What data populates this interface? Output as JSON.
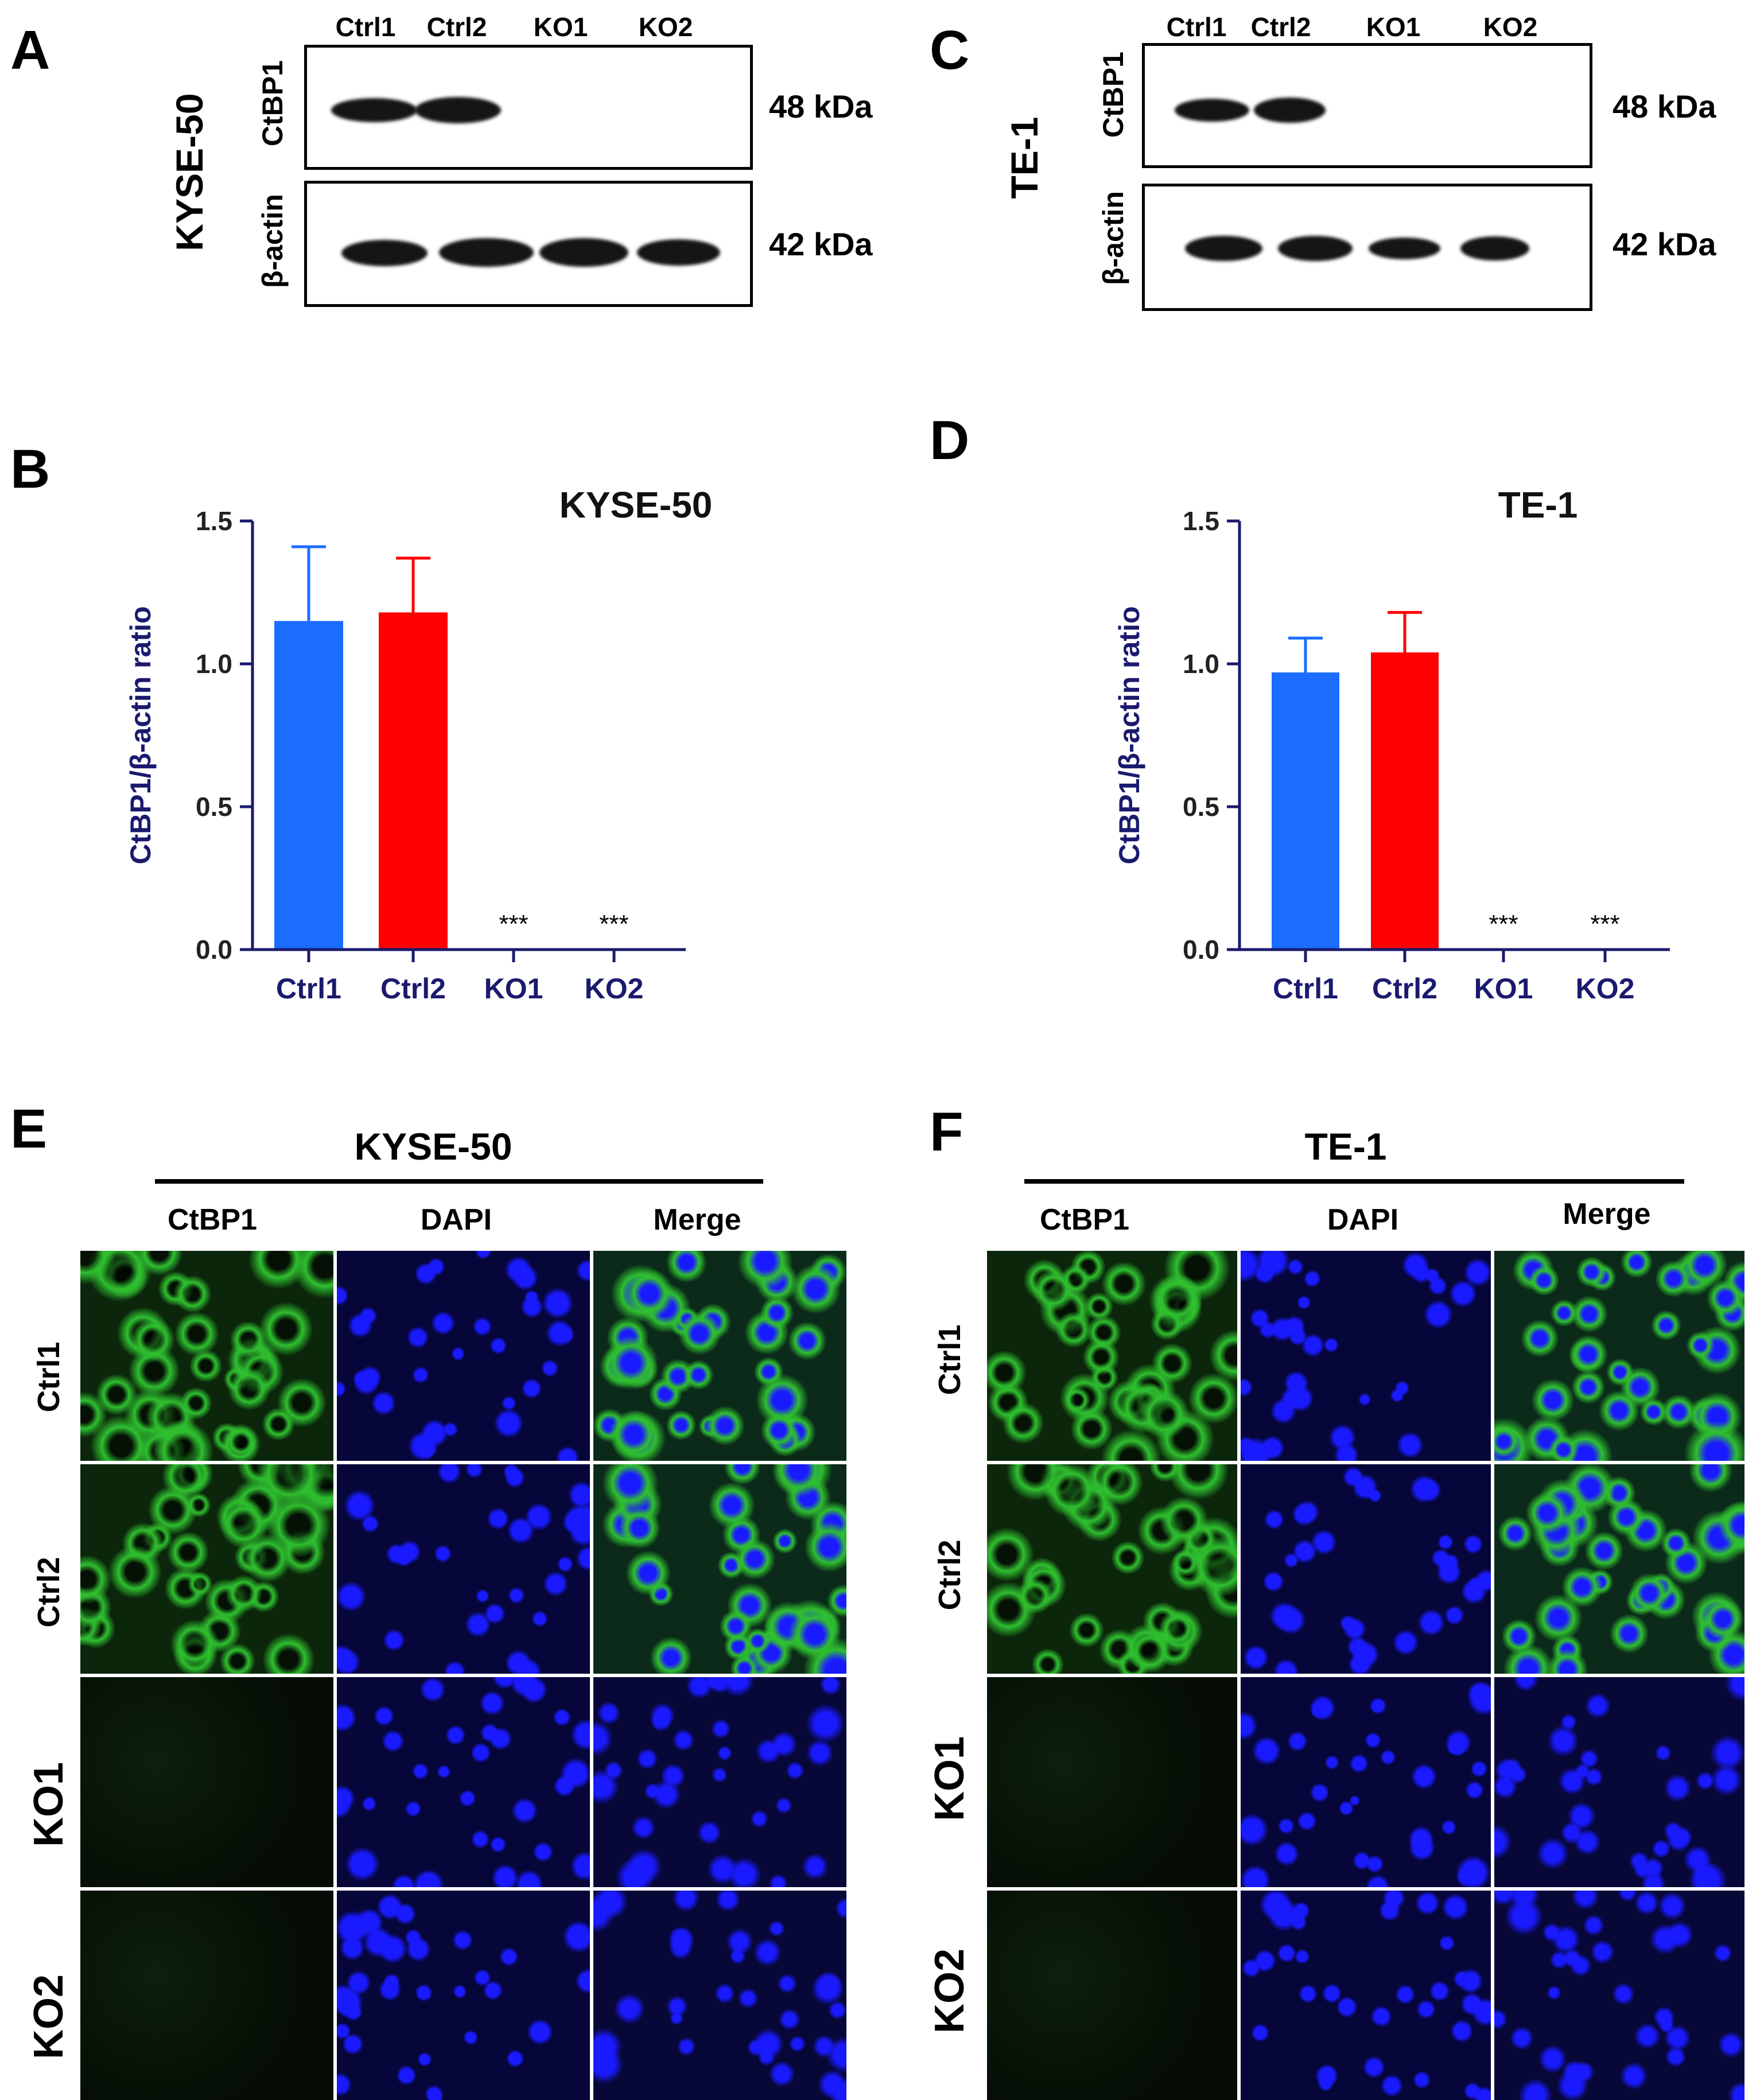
{
  "panel_letters": {
    "a": "A",
    "b": "B",
    "c": "C",
    "d": "D",
    "e": "E",
    "f": "F"
  },
  "western_blots": {
    "kyse": {
      "cell_line": "KYSE-50",
      "lanes": [
        "Ctrl1",
        "Ctrl2",
        "KO1",
        "KO2"
      ],
      "rows": [
        {
          "protein": "CtBP1",
          "kda": "48 kDa",
          "band_intensity": [
            1.0,
            1.0,
            0.0,
            0.0
          ]
        },
        {
          "protein": "β-actin",
          "kda": "42 kDa",
          "band_intensity": [
            1.0,
            1.0,
            1.0,
            1.0
          ]
        }
      ]
    },
    "te1": {
      "cell_line": "TE-1",
      "lanes": [
        "Ctrl1",
        "Ctrl2",
        "KO1",
        "KO2"
      ],
      "rows": [
        {
          "protein": "CtBP1",
          "kda": "48 kDa",
          "band_intensity": [
            1.0,
            1.0,
            0.0,
            0.0
          ]
        },
        {
          "protein": "β-actin",
          "kda": "42 kDa",
          "band_intensity": [
            1.0,
            1.0,
            1.0,
            1.0
          ]
        }
      ]
    }
  },
  "chart_data": [
    {
      "type": "bar",
      "title": "KYSE-50",
      "ylabel": "CtBP1/β-actin ratio",
      "xlabel": "",
      "categories": [
        "Ctrl1",
        "Ctrl2",
        "KO1",
        "KO2"
      ],
      "values": [
        1.15,
        1.18,
        0.0,
        0.0
      ],
      "error_upper": [
        1.41,
        1.37,
        null,
        null
      ],
      "annotations": [
        "",
        "",
        "***",
        "***"
      ],
      "colors": [
        "#1a6dff",
        "#ff0000",
        "#1a6dff",
        "#ff0000"
      ],
      "ylim": [
        0,
        1.5
      ],
      "yticks": [
        "0.0",
        "0.5",
        "1.0",
        "1.5"
      ],
      "axis_color": "#1a1a6e",
      "grid": false
    },
    {
      "type": "bar",
      "title": "TE-1",
      "ylabel": "CtBP1/β-actin ratio",
      "xlabel": "",
      "categories": [
        "Ctrl1",
        "Ctrl2",
        "KO1",
        "KO2"
      ],
      "values": [
        0.97,
        1.04,
        0.0,
        0.0
      ],
      "error_upper": [
        1.09,
        1.18,
        null,
        null
      ],
      "annotations": [
        "",
        "",
        "***",
        "***"
      ],
      "colors": [
        "#1a6dff",
        "#ff0000",
        "#1a6dff",
        "#ff0000"
      ],
      "ylim": [
        0,
        1.5
      ],
      "yticks": [
        "0.0",
        "0.5",
        "1.0",
        "1.5"
      ],
      "axis_color": "#1a1a6e",
      "grid": false
    }
  ],
  "immunofluorescence": {
    "kyse": {
      "title": "KYSE-50",
      "columns": [
        "CtBP1",
        "DAPI",
        "Merge"
      ],
      "rows": [
        "Ctrl1",
        "Ctrl2",
        "KO1",
        "KO2"
      ],
      "ctbp1_signal": [
        1.0,
        0.9,
        0.05,
        0.05
      ]
    },
    "te1": {
      "title": "TE-1",
      "columns": [
        "CtBP1",
        "DAPI",
        "Merge"
      ],
      "rows": [
        "Ctrl1",
        "Ctrl2",
        "KO1",
        "KO2"
      ],
      "ctbp1_signal": [
        1.0,
        0.9,
        0.05,
        0.1
      ]
    }
  },
  "colors": {
    "if_green": "#2fbf2f",
    "if_blue": "#1a1aff",
    "axis_navy": "#1a1a6e",
    "bar_blue": "#1a6dff",
    "bar_red": "#ff0000"
  }
}
